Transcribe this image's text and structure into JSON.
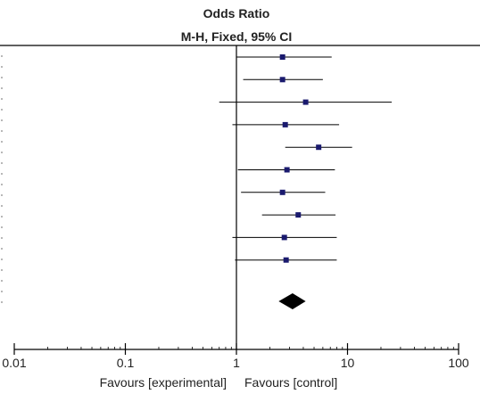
{
  "header": {
    "title": "Odds Ratio",
    "subtitle": "M-H, Fixed, 95% CI"
  },
  "chart_data": {
    "type": "forest",
    "scale": "log",
    "xlim": [
      0.01,
      100
    ],
    "null_line": 1,
    "x_ticks": [
      0.01,
      0.1,
      1,
      10,
      100
    ],
    "x_tick_labels": [
      "0.01",
      "0.1",
      "1",
      "10",
      "100"
    ],
    "favours_left": "Favours [experimental]",
    "favours_right": "Favours [control]",
    "studies": [
      {
        "or": 2.6,
        "lower": 1.0,
        "upper": 7.2
      },
      {
        "or": 2.6,
        "lower": 1.15,
        "upper": 6.0
      },
      {
        "or": 4.2,
        "lower": 0.7,
        "upper": 25.0
      },
      {
        "or": 2.75,
        "lower": 0.92,
        "upper": 8.4
      },
      {
        "or": 5.5,
        "lower": 2.75,
        "upper": 11.0
      },
      {
        "or": 2.85,
        "lower": 1.03,
        "upper": 7.7
      },
      {
        "or": 2.6,
        "lower": 1.1,
        "upper": 6.3
      },
      {
        "or": 3.6,
        "lower": 1.7,
        "upper": 7.8
      },
      {
        "or": 2.7,
        "lower": 0.92,
        "upper": 8.0
      },
      {
        "or": 2.8,
        "lower": 0.97,
        "upper": 8.0
      }
    ],
    "pooled": {
      "or": 3.2,
      "lower": 2.4,
      "upper": 4.2
    },
    "colors": {
      "marker": "#1a1a6e",
      "line": "#000000",
      "text": "#222222",
      "background": "#ffffff"
    }
  }
}
